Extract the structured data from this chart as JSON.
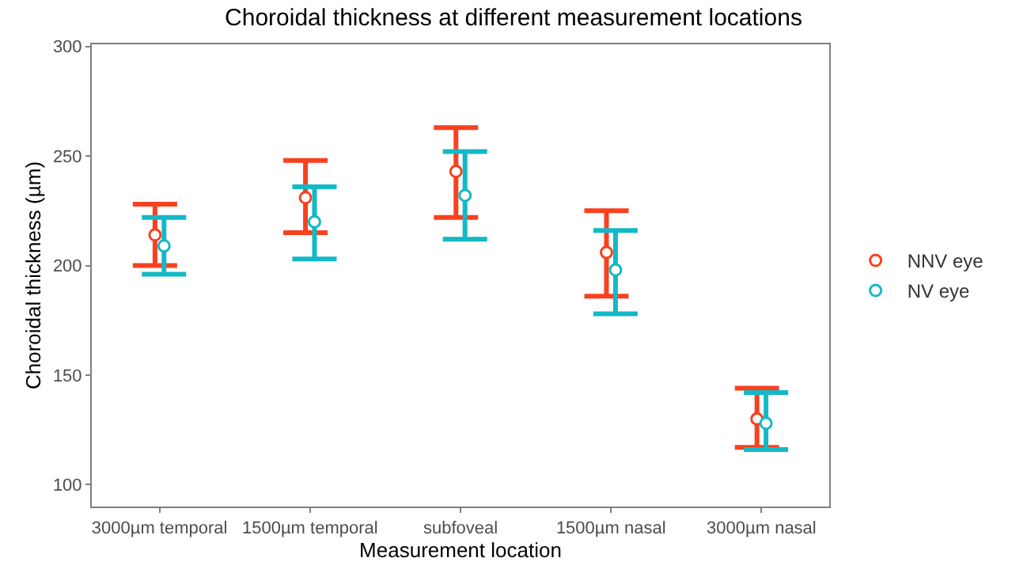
{
  "chart_data": {
    "type": "scatter",
    "title": "Choroidal thickness at different measurement locations",
    "xlabel": "Measurement location",
    "ylabel": "Choroidal thickness (µm)",
    "categories": [
      "3000µm temporal",
      "1500µm temporal",
      "subfoveal",
      "1500µm nasal",
      "3000µm nasal"
    ],
    "series": [
      {
        "name": "NNV eye",
        "color": "#f9401f",
        "values": [
          214,
          231,
          243,
          206,
          130
        ],
        "errors": [
          [
            200,
            228
          ],
          [
            215,
            248
          ],
          [
            222,
            263
          ],
          [
            186,
            225
          ],
          [
            117,
            144
          ]
        ]
      },
      {
        "name": "NV eye",
        "color": "#13b9c6",
        "values": [
          209,
          220,
          232,
          198,
          128
        ],
        "errors": [
          [
            196,
            222
          ],
          [
            203,
            236
          ],
          [
            212,
            252
          ],
          [
            178,
            216
          ],
          [
            116,
            142
          ]
        ]
      }
    ],
    "ylim": [
      90,
      301
    ],
    "yticks": [
      100,
      150,
      200,
      250,
      300
    ],
    "legend": "right",
    "marker": "circle"
  }
}
